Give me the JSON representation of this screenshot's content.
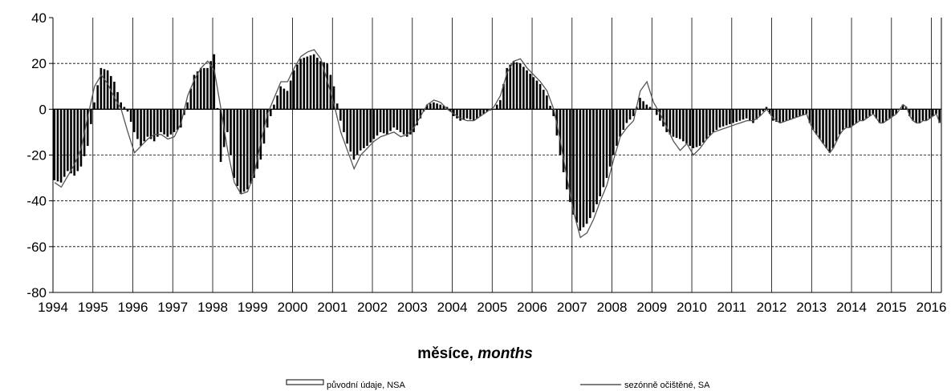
{
  "chart_data": {
    "type": "bar",
    "title": "",
    "xlabel": "měsíce, months",
    "xlabel_parts": {
      "normal": "měsíce, ",
      "italic": "months"
    },
    "ylabel": "",
    "ylim": [
      -80,
      40
    ],
    "y_ticks": [
      "40",
      "20",
      "0",
      "-20",
      "-40",
      "-60",
      "-80"
    ],
    "y_tick_values": [
      40,
      20,
      0,
      -20,
      -40,
      -60,
      -80
    ],
    "x_ticks": [
      "1994",
      "1995",
      "1996",
      "1997",
      "1998",
      "1999",
      "2000",
      "2001",
      "2002",
      "2003",
      "2004",
      "2005",
      "2006",
      "2007",
      "2008",
      "2009",
      "2010",
      "2011",
      "2012",
      "2013",
      "2014",
      "2015",
      "2016"
    ],
    "grid": {
      "horizontal": "dashed",
      "vertical": "solid"
    },
    "legend_placement": "bottom",
    "series": [
      {
        "name": "původní údaje, NSA",
        "style": "bars",
        "anchors": [
          [
            "1994-01",
            -31
          ],
          [
            "1994-03",
            -32
          ],
          [
            "1994-05",
            -27
          ],
          [
            "1994-07",
            -29
          ],
          [
            "1994-09",
            -25
          ],
          [
            "1994-11",
            -16
          ],
          [
            "1995-01",
            3
          ],
          [
            "1995-03",
            18
          ],
          [
            "1995-05",
            17
          ],
          [
            "1995-07",
            12
          ],
          [
            "1995-09",
            3
          ],
          [
            "1995-11",
            -1
          ],
          [
            "1996-01",
            -10
          ],
          [
            "1996-03",
            -16
          ],
          [
            "1996-05",
            -12
          ],
          [
            "1996-07",
            -14
          ],
          [
            "1996-09",
            -10
          ],
          [
            "1996-11",
            -12
          ],
          [
            "1997-01",
            -10
          ],
          [
            "1997-03",
            -8
          ],
          [
            "1997-05",
            3
          ],
          [
            "1997-07",
            15
          ],
          [
            "1997-09",
            18
          ],
          [
            "1997-11",
            18
          ],
          [
            "1998-01",
            24
          ],
          [
            "1998-03",
            -23
          ],
          [
            "1998-05",
            -10
          ],
          [
            "1998-07",
            -30
          ],
          [
            "1998-09",
            -37
          ],
          [
            "1998-11",
            -35
          ],
          [
            "1999-01",
            -30
          ],
          [
            "1999-03",
            -22
          ],
          [
            "1999-05",
            -8
          ],
          [
            "1999-07",
            2
          ],
          [
            "1999-09",
            10
          ],
          [
            "1999-11",
            8
          ],
          [
            "2000-01",
            17
          ],
          [
            "2000-03",
            22
          ],
          [
            "2000-05",
            23
          ],
          [
            "2000-07",
            24
          ],
          [
            "2000-09",
            21
          ],
          [
            "2000-11",
            20
          ],
          [
            "2001-01",
            10
          ],
          [
            "2001-03",
            -5
          ],
          [
            "2001-05",
            -15
          ],
          [
            "2001-07",
            -22
          ],
          [
            "2001-09",
            -18
          ],
          [
            "2001-11",
            -16
          ],
          [
            "2002-01",
            -13
          ],
          [
            "2002-03",
            -10
          ],
          [
            "2002-05",
            -11
          ],
          [
            "2002-07",
            -8
          ],
          [
            "2002-09",
            -10
          ],
          [
            "2002-11",
            -12
          ],
          [
            "2003-01",
            -10
          ],
          [
            "2003-03",
            -4
          ],
          [
            "2003-05",
            2
          ],
          [
            "2003-07",
            3
          ],
          [
            "2003-09",
            2
          ],
          [
            "2003-11",
            1
          ],
          [
            "2004-01",
            -3
          ],
          [
            "2004-03",
            -5
          ],
          [
            "2004-05",
            -4
          ],
          [
            "2004-07",
            -5
          ],
          [
            "2004-09",
            -3
          ],
          [
            "2004-11",
            -1
          ],
          [
            "2005-01",
            0
          ],
          [
            "2005-03",
            4
          ],
          [
            "2005-05",
            18
          ],
          [
            "2005-07",
            21
          ],
          [
            "2005-09",
            20
          ],
          [
            "2005-11",
            17
          ],
          [
            "2006-01",
            14
          ],
          [
            "2006-03",
            11
          ],
          [
            "2006-05",
            6
          ],
          [
            "2006-07",
            -3
          ],
          [
            "2006-09",
            -20
          ],
          [
            "2006-11",
            -35
          ],
          [
            "2007-01",
            -46
          ],
          [
            "2007-03",
            -53
          ],
          [
            "2007-05",
            -50
          ],
          [
            "2007-07",
            -45
          ],
          [
            "2007-09",
            -38
          ],
          [
            "2007-11",
            -30
          ],
          [
            "2008-01",
            -20
          ],
          [
            "2008-03",
            -12
          ],
          [
            "2008-05",
            -6
          ],
          [
            "2008-07",
            -3
          ],
          [
            "2008-09",
            5
          ],
          [
            "2008-11",
            2
          ],
          [
            "2009-01",
            0
          ],
          [
            "2009-03",
            -5
          ],
          [
            "2009-05",
            -10
          ],
          [
            "2009-07",
            -12
          ],
          [
            "2009-09",
            -13
          ],
          [
            "2009-11",
            -15
          ],
          [
            "2010-01",
            -17
          ],
          [
            "2010-03",
            -16
          ],
          [
            "2010-05",
            -13
          ],
          [
            "2010-07",
            -10
          ],
          [
            "2010-09",
            -8
          ],
          [
            "2010-11",
            -7
          ],
          [
            "2011-01",
            -6
          ],
          [
            "2011-03",
            -5
          ],
          [
            "2011-05",
            -4
          ],
          [
            "2011-07",
            -6
          ],
          [
            "2011-09",
            -3
          ],
          [
            "2011-11",
            1
          ],
          [
            "2012-01",
            -5
          ],
          [
            "2012-03",
            -6
          ],
          [
            "2012-05",
            -5
          ],
          [
            "2012-07",
            -4
          ],
          [
            "2012-09",
            -3
          ],
          [
            "2012-11",
            -2
          ]
        ]
      },
      {
        "name": "sezónně očištěné, SA",
        "style": "line",
        "anchors": [
          [
            "1994-01",
            -32
          ],
          [
            "1994-03",
            -34
          ],
          [
            "1994-05",
            -29
          ],
          [
            "1994-07",
            -24
          ],
          [
            "1994-09",
            -17
          ],
          [
            "1994-11",
            -3
          ],
          [
            "1995-01",
            10
          ],
          [
            "1995-03",
            15
          ],
          [
            "1995-05",
            11
          ],
          [
            "1995-07",
            5
          ],
          [
            "1995-09",
            0
          ],
          [
            "1995-11",
            -10
          ],
          [
            "1996-01",
            -19
          ],
          [
            "1996-03",
            -16
          ],
          [
            "1996-05",
            -13
          ],
          [
            "1996-07",
            -11
          ],
          [
            "1996-09",
            -11
          ],
          [
            "1996-11",
            -13
          ],
          [
            "1997-01",
            -12
          ],
          [
            "1997-03",
            -6
          ],
          [
            "1997-05",
            6
          ],
          [
            "1997-07",
            13
          ],
          [
            "1997-09",
            18
          ],
          [
            "1997-11",
            21
          ],
          [
            "1998-01",
            17
          ],
          [
            "1998-03",
            0
          ],
          [
            "1998-05",
            -18
          ],
          [
            "1998-07",
            -32
          ],
          [
            "1998-09",
            -37
          ],
          [
            "1998-11",
            -36
          ],
          [
            "1999-01",
            -28
          ],
          [
            "1999-03",
            -14
          ],
          [
            "1999-05",
            -2
          ],
          [
            "1999-07",
            5
          ],
          [
            "1999-09",
            12
          ],
          [
            "1999-11",
            12
          ],
          [
            "2000-01",
            18
          ],
          [
            "2000-03",
            23
          ],
          [
            "2000-05",
            25
          ],
          [
            "2000-07",
            26
          ],
          [
            "2000-09",
            22
          ],
          [
            "2000-11",
            12
          ],
          [
            "2001-01",
            2
          ],
          [
            "2001-03",
            -10
          ],
          [
            "2001-05",
            -18
          ],
          [
            "2001-07",
            -26
          ],
          [
            "2001-09",
            -20
          ],
          [
            "2001-11",
            -17
          ],
          [
            "2002-01",
            -14
          ],
          [
            "2002-03",
            -12
          ],
          [
            "2002-05",
            -11
          ],
          [
            "2002-07",
            -10
          ],
          [
            "2002-09",
            -12
          ],
          [
            "2002-11",
            -11
          ],
          [
            "2003-01",
            -8
          ],
          [
            "2003-03",
            -3
          ],
          [
            "2003-05",
            2
          ],
          [
            "2003-07",
            4
          ],
          [
            "2003-09",
            3
          ],
          [
            "2003-11",
            0
          ],
          [
            "2004-01",
            -2
          ],
          [
            "2004-03",
            -4
          ],
          [
            "2004-05",
            -5
          ],
          [
            "2004-07",
            -5
          ],
          [
            "2004-09",
            -3
          ],
          [
            "2004-11",
            -1
          ],
          [
            "2005-01",
            1
          ],
          [
            "2005-03",
            6
          ],
          [
            "2005-05",
            16
          ],
          [
            "2005-07",
            21
          ],
          [
            "2005-09",
            22
          ],
          [
            "2005-11",
            18
          ],
          [
            "2006-01",
            15
          ],
          [
            "2006-03",
            12
          ],
          [
            "2006-05",
            8
          ],
          [
            "2006-07",
            0
          ],
          [
            "2006-09",
            -14
          ],
          [
            "2006-11",
            -30
          ],
          [
            "2007-01",
            -45
          ],
          [
            "2007-03",
            -56
          ],
          [
            "2007-05",
            -54
          ],
          [
            "2007-07",
            -48
          ],
          [
            "2007-09",
            -40
          ],
          [
            "2007-11",
            -33
          ],
          [
            "2008-01",
            -22
          ],
          [
            "2008-03",
            -12
          ],
          [
            "2008-05",
            -8
          ],
          [
            "2008-07",
            -5
          ],
          [
            "2008-09",
            8
          ],
          [
            "2008-11",
            12
          ],
          [
            "2009-01",
            3
          ],
          [
            "2009-03",
            -2
          ],
          [
            "2009-05",
            -8
          ],
          [
            "2009-07",
            -14
          ],
          [
            "2009-09",
            -18
          ],
          [
            "2009-11",
            -15
          ],
          [
            "2010-01",
            -20
          ],
          [
            "2010-03",
            -17
          ],
          [
            "2010-05",
            -13
          ],
          [
            "2010-07",
            -10
          ],
          [
            "2010-09",
            -9
          ],
          [
            "2010-11",
            -8
          ],
          [
            "2011-01",
            -7
          ],
          [
            "2011-03",
            -6
          ],
          [
            "2011-05",
            -5
          ],
          [
            "2011-07",
            -5
          ],
          [
            "2011-09",
            -3
          ],
          [
            "2011-11",
            0
          ],
          [
            "2012-01",
            -4
          ],
          [
            "2012-03",
            -6
          ],
          [
            "2012-05",
            -5
          ],
          [
            "2012-07",
            -4
          ],
          [
            "2012-09",
            -3
          ],
          [
            "2012-11",
            -2
          ]
        ]
      }
    ]
  },
  "legend": {
    "nsa_label": "původní údaje, NSA",
    "sa_label": "sezónně očištěné, SA"
  },
  "colors": {
    "bars": "#000000",
    "line": "#555555",
    "grid": "#000000",
    "axis": "#000000"
  }
}
